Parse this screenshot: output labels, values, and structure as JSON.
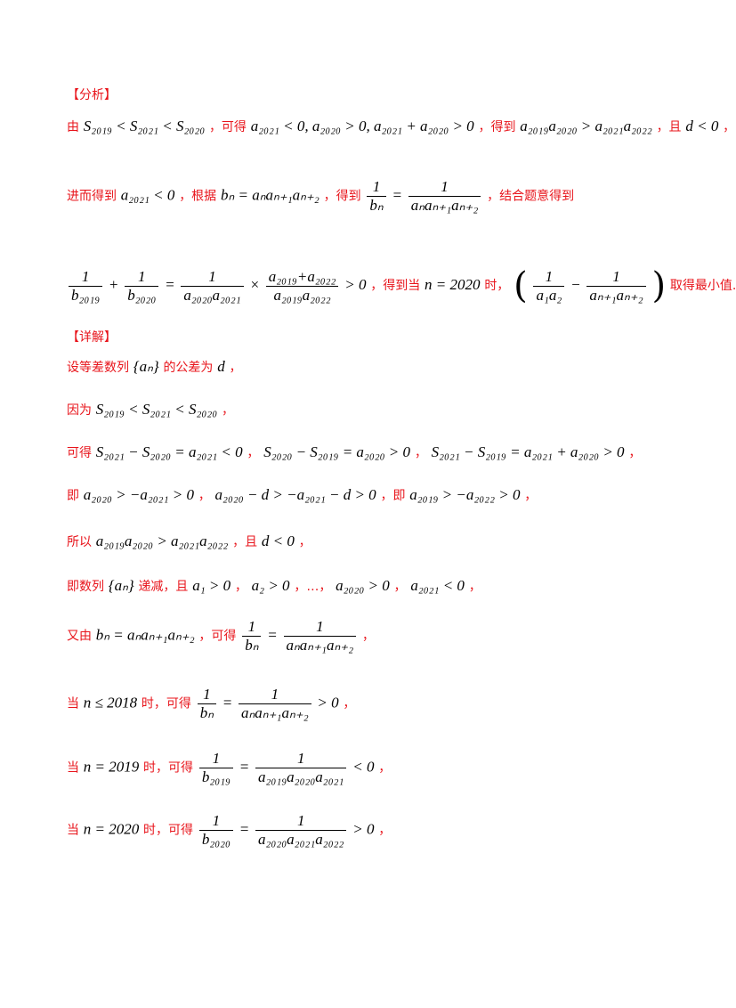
{
  "analysis": {
    "heading": "【分析】",
    "l1": {
      "p1": "由",
      "m1": "S₂₀₁₉ < S₂₀₂₁ < S₂₀₂₀",
      "p2": "，可得",
      "m2": "a₂₀₂₁ < 0, a₂₀₂₀ > 0, a₂₀₂₁ + a₂₀₂₀ > 0",
      "p3": "，得到",
      "m3": "a₂₀₁₉a₂₀₂₀ > a₂₀₂₁a₂₀₂₂",
      "p4": "，且",
      "m4": "d < 0",
      "p5": "，"
    },
    "l2": {
      "p1": "进而得到",
      "m1": "a₂₀₂₁ < 0",
      "p2": "，根据",
      "m2": "bₙ = aₙaₙ₊₁aₙ₊₂",
      "p3": "，得到",
      "f_num": "1",
      "f_den": "bₙ",
      "eq": "=",
      "f2_num": "1",
      "f2_den": "aₙaₙ₊₁aₙ₊₂",
      "p4": "，结合题意得到"
    },
    "l3": {
      "a_num": "1",
      "a_den": "b₂₀₁₉",
      "plus": "+",
      "b_num": "1",
      "b_den": "b₂₀₂₀",
      "eq": "=",
      "c_num": "1",
      "c_den": "a₂₀₂₀a₂₀₂₁",
      "times": "×",
      "d_num": "a₂₀₁₉+a₂₀₂₂",
      "d_den": "a₂₀₁₉a₂₀₂₂",
      "gt": "> 0",
      "p1": "，得到当",
      "m1": "n = 2020",
      "p2": "时，",
      "e_num": "1",
      "e_den": "a₁a₂",
      "minus": "−",
      "f_num": "1",
      "f_den": "aₙ₊₁aₙ₊₂",
      "p3": "取得最小值."
    }
  },
  "solution": {
    "heading": "【详解】",
    "l1": {
      "p1": "设等差数列",
      "m1": "{aₙ}",
      "p2": "的公差为",
      "m2": "d",
      "p3": "，"
    },
    "l2": {
      "p1": "因为",
      "m1": "S₂₀₁₉ < S₂₀₂₁ < S₂₀₂₀",
      "p2": "，"
    },
    "l3": {
      "p1": "可得",
      "m1": "S₂₀₂₁ − S₂₀₂₀ = a₂₀₂₁ < 0",
      "p2": "，",
      "m2": "S₂₀₂₀ − S₂₀₁₉ = a₂₀₂₀ > 0",
      "p3": "，",
      "m3": "S₂₀₂₁ − S₂₀₁₉ = a₂₀₂₁ + a₂₀₂₀ > 0",
      "p4": "，"
    },
    "l4": {
      "p1": "即",
      "m1": "a₂₀₂₀ > −a₂₀₂₁ > 0",
      "p2": "，",
      "m2": "a₂₀₂₀ − d > −a₂₀₂₁ − d > 0",
      "p3": "，即",
      "m3": "a₂₀₁₉ > −a₂₀₂₂ > 0",
      "p4": "，"
    },
    "l5": {
      "p1": "所以",
      "m1": "a₂₀₁₉a₂₀₂₀ > a₂₀₂₁a₂₀₂₂",
      "p2": "，且",
      "m2": "d < 0",
      "p3": "，"
    },
    "l6": {
      "p1": "即数列",
      "m1": "{aₙ}",
      "p2": "递减，且",
      "m2": "a₁ > 0",
      "p3": "，",
      "m3": "a₂ > 0",
      "p4": "，…，",
      "m4": "a₂₀₂₀ > 0",
      "p5": "，",
      "m5": "a₂₀₂₁ < 0",
      "p6": "，"
    },
    "l7": {
      "p1": "又由",
      "m1": "bₙ = aₙaₙ₊₁aₙ₊₂",
      "p2": "，可得",
      "f_num": "1",
      "f_den": "bₙ",
      "eq": "=",
      "f2_num": "1",
      "f2_den": "aₙaₙ₊₁aₙ₊₂",
      "p3": "，"
    },
    "l8": {
      "p1": "当",
      "m1": "n ≤ 2018",
      "p2": "时，可得",
      "f_num": "1",
      "f_den": "bₙ",
      "eq": "=",
      "f2_num": "1",
      "f2_den": "aₙaₙ₊₁aₙ₊₂",
      "gt": "> 0",
      "p3": "，"
    },
    "l9": {
      "p1": "当",
      "m1": "n = 2019",
      "p2": "时，可得",
      "f_num": "1",
      "f_den": "b₂₀₁₉",
      "eq": "=",
      "f2_num": "1",
      "f2_den": "a₂₀₁₉a₂₀₂₀a₂₀₂₁",
      "lt": "< 0",
      "p3": "，"
    },
    "l10": {
      "p1": "当",
      "m1": "n = 2020",
      "p2": "时，可得",
      "f_num": "1",
      "f_den": "b₂₀₂₀",
      "eq": "=",
      "f2_num": "1",
      "f2_den": "a₂₀₂₀a₂₀₂₁a₂₀₂₂",
      "gt": "> 0",
      "p3": "，"
    }
  }
}
